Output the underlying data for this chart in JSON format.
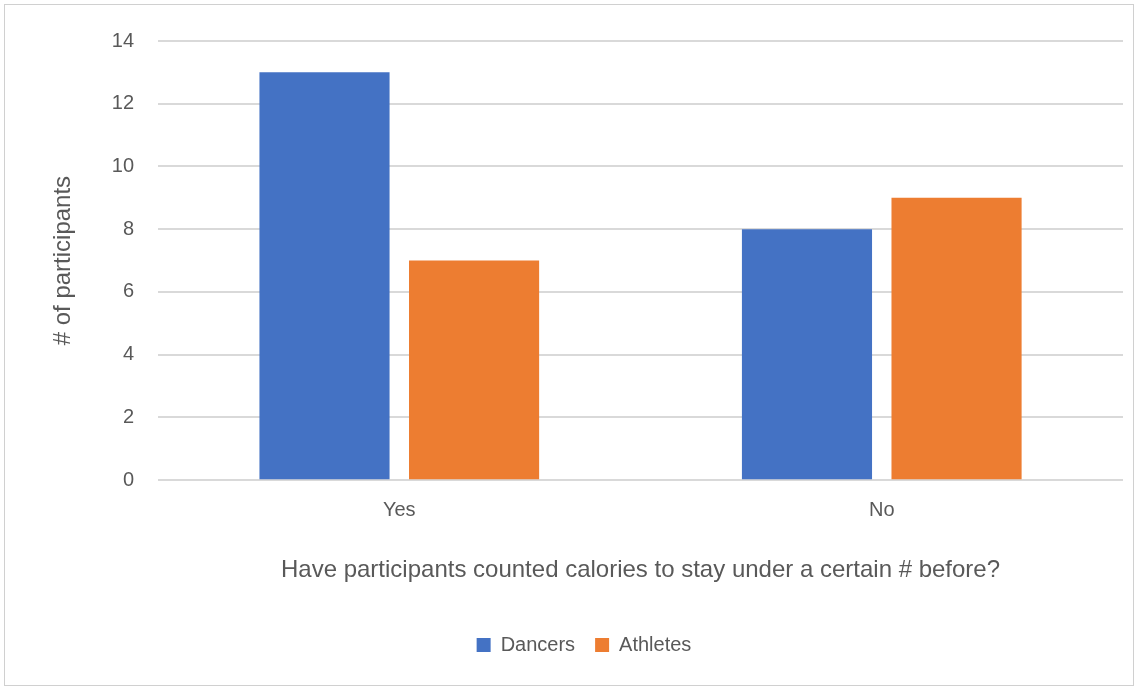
{
  "chart_data": {
    "type": "bar",
    "xlabel": "Have participants counted calories to stay under a certain # before?",
    "ylabel": "# of participants",
    "categories": [
      "Yes",
      "No"
    ],
    "series": [
      {
        "name": "Dancers",
        "color": "#4472c4",
        "values": [
          13,
          8
        ]
      },
      {
        "name": "Athletes",
        "color": "#ed7d31",
        "values": [
          7,
          9
        ]
      }
    ],
    "ylim": [
      0,
      14
    ],
    "yticks": [
      0,
      2,
      4,
      6,
      8,
      10,
      12,
      14
    ],
    "grid": "y",
    "legend": "bottom"
  }
}
